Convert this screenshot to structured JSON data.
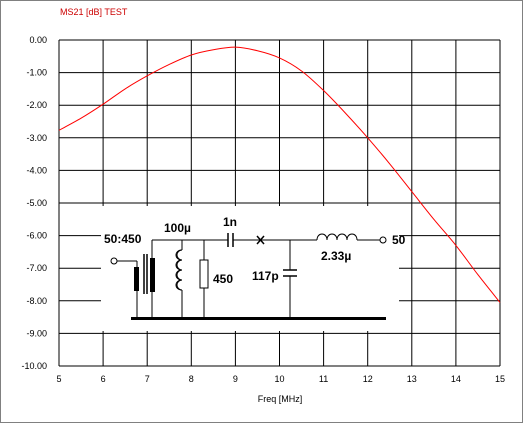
{
  "chart_data": {
    "type": "line",
    "title": "MS21 [dB] TEST",
    "xlabel": "Freq [MHz]",
    "ylabel": "",
    "xlim": [
      5,
      15
    ],
    "ylim": [
      -10,
      0
    ],
    "x_ticks": [
      5,
      6,
      7,
      8,
      9,
      10,
      11,
      12,
      13,
      14,
      15
    ],
    "x_tick_labels": [
      "5",
      "6",
      "7",
      "8",
      "9",
      "10",
      "11",
      "12",
      "13",
      "14",
      "15"
    ],
    "y_ticks": [
      0,
      -1,
      -2,
      -3,
      -4,
      -5,
      -6,
      -7,
      -8,
      -9,
      -10
    ],
    "y_tick_labels": [
      "0.00",
      "-1.00",
      "-2.00",
      "-3.00",
      "-4.00",
      "-5.00",
      "-6.00",
      "-7.00",
      "-8.00",
      "-9.00",
      "-10.00"
    ],
    "grid": true,
    "series": [
      {
        "color": "#ff0000",
        "x": [
          5,
          5.5,
          6,
          6.5,
          7,
          7.5,
          8,
          8.5,
          9,
          9.5,
          10,
          10.5,
          11,
          11.5,
          12,
          12.5,
          13,
          13.5,
          14,
          14.5,
          15
        ],
        "y": [
          -2.77,
          -2.4,
          -1.97,
          -1.5,
          -1.1,
          -0.75,
          -0.46,
          -0.3,
          -0.22,
          -0.33,
          -0.55,
          -0.95,
          -1.55,
          -2.25,
          -3.0,
          -3.8,
          -4.65,
          -5.5,
          -6.3,
          -7.2,
          -8.05
        ]
      }
    ],
    "schematic_labels": {
      "transformer": "50:450",
      "inductor1": "100µ",
      "capacitor1": "1n",
      "resistor": "450",
      "capacitor2": "117p",
      "inductor2": "2.33µ",
      "output": "50"
    }
  },
  "colors": {
    "background": "#ffffff",
    "grid": "#000000",
    "curve": "#ff0000",
    "title": "#cc0000"
  }
}
